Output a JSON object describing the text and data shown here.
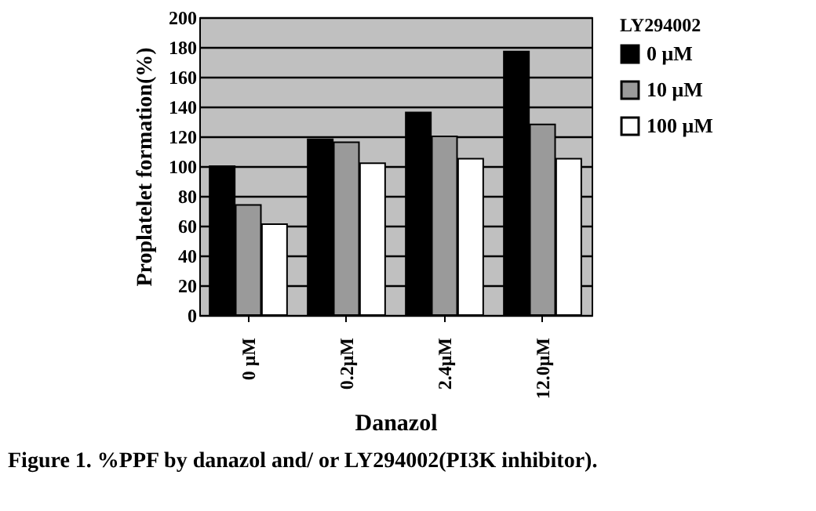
{
  "chart_data": {
    "type": "bar",
    "xlabel": "Danazol",
    "ylabel": "Proplatelet formation(%)",
    "legend_title": "LY294002",
    "categories": [
      "0 μM",
      "0.2μM",
      "2.4μM",
      "12.0μM"
    ],
    "series": [
      {
        "name": "0 μM",
        "color": "#000000",
        "values": [
          100,
          118,
          136,
          177
        ]
      },
      {
        "name": "10 μM",
        "color": "#9a9a9a",
        "values": [
          74,
          116,
          120,
          128
        ]
      },
      {
        "name": "100 μM",
        "color": "#ffffff",
        "values": [
          61,
          102,
          105,
          105
        ]
      }
    ],
    "ylim": [
      0,
      200
    ],
    "yticks": [
      0,
      20,
      40,
      60,
      80,
      100,
      120,
      140,
      160,
      180,
      200
    ],
    "grid": "y",
    "legend": "right",
    "annotations": [
      "Figure 1.  %PPF by danazol and/ or LY294002(PI3K inhibitor)."
    ]
  }
}
